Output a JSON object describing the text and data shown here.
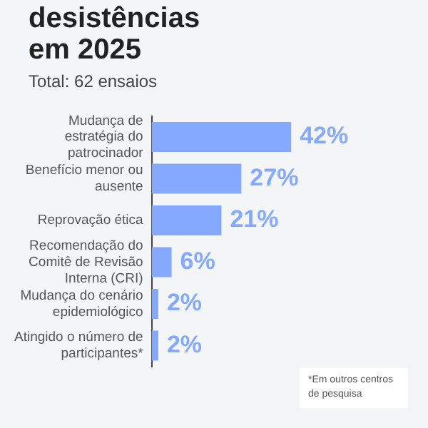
{
  "chart_data": {
    "type": "bar",
    "orientation": "horizontal",
    "title": "desistências em 2025",
    "subtitle": "Total: 62 ensaios",
    "categories": [
      "Mudança de estratégia do patrocinador",
      "Benefício menor ou ausente",
      "Reprovação ética",
      "Recomendação do Comitê de Revisão Interna (CRI)",
      "Mudança do cenário epidemiológico",
      "Atingido o número de participantes*"
    ],
    "values": [
      42,
      27,
      21,
      6,
      2,
      2
    ],
    "color": "#84a9ff",
    "value_labels": [
      "42%",
      "27%",
      "21%",
      "6%",
      "2%",
      "2%"
    ],
    "annotations": [
      "*Em outros centros de pesquisa"
    ]
  }
}
